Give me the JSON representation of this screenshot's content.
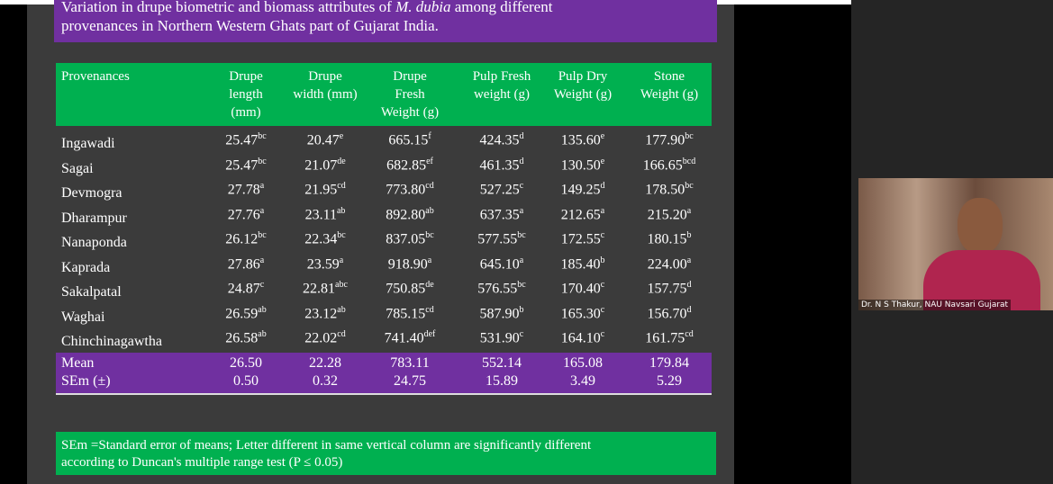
{
  "slide": {
    "title": [
      "Variation in drupe biometric and biomass attributes of ",
      "M. dubia",
      " among different",
      "provenances in Northern Western Ghats part of Gujarat India."
    ],
    "table": {
      "header": [
        [
          "Provenances"
        ],
        [
          "Drupe",
          "length",
          "(mm)"
        ],
        [
          "Drupe",
          "width (mm)"
        ],
        [
          "Drupe",
          "Fresh",
          "Weight (g)"
        ],
        [
          "Pulp Fresh",
          "weight (g)"
        ],
        [
          "Pulp Dry",
          "Weight (g)"
        ],
        [
          "Stone",
          "Weight (g)"
        ]
      ],
      "rows": [
        [
          "Ingawadi",
          [
            "25.47",
            "bc"
          ],
          [
            "20.47",
            "e"
          ],
          [
            "665.15",
            "f"
          ],
          [
            "424.35",
            "d"
          ],
          [
            "135.60",
            "e"
          ],
          [
            "177.90",
            "bc"
          ]
        ],
        [
          "Sagai",
          [
            "25.47",
            "bc"
          ],
          [
            "21.07",
            "de"
          ],
          [
            "682.85",
            "ef"
          ],
          [
            "461.35",
            "d"
          ],
          [
            "130.50",
            "e"
          ],
          [
            "166.65",
            "bcd"
          ]
        ],
        [
          "Devmogra",
          [
            "27.78",
            "a"
          ],
          [
            "21.95",
            "cd"
          ],
          [
            "773.80",
            "cd"
          ],
          [
            "527.25",
            "c"
          ],
          [
            "149.25",
            "d"
          ],
          [
            "178.50",
            "bc"
          ]
        ],
        [
          "Dharampur",
          [
            "27.76",
            "a"
          ],
          [
            "23.11",
            "ab"
          ],
          [
            "892.80",
            "ab"
          ],
          [
            "637.35",
            "a"
          ],
          [
            "212.65",
            "a"
          ],
          [
            "215.20",
            "a"
          ]
        ],
        [
          "Nanaponda",
          [
            "26.12",
            "bc"
          ],
          [
            "22.34",
            "bc"
          ],
          [
            "837.05",
            "bc"
          ],
          [
            "577.55",
            "bc"
          ],
          [
            "172.55",
            "c"
          ],
          [
            "180.15",
            "b"
          ]
        ],
        [
          "Kaprada",
          [
            "27.86",
            "a"
          ],
          [
            "23.59",
            "a"
          ],
          [
            "918.90",
            "a"
          ],
          [
            "645.10",
            "a"
          ],
          [
            "185.40",
            "b"
          ],
          [
            "224.00",
            "a"
          ]
        ],
        [
          "Sakalpatal",
          [
            "24.87",
            "c"
          ],
          [
            "22.81",
            "abc"
          ],
          [
            "750.85",
            "de"
          ],
          [
            "576.55",
            "bc"
          ],
          [
            "170.40",
            "c"
          ],
          [
            "157.75",
            "d"
          ]
        ],
        [
          "Waghai",
          [
            "26.59",
            "ab"
          ],
          [
            "23.12",
            "ab"
          ],
          [
            "785.15",
            "cd"
          ],
          [
            "587.90",
            "b"
          ],
          [
            "165.30",
            "c"
          ],
          [
            "156.70",
            "d"
          ]
        ],
        [
          "Chinchinagawtha",
          [
            "26.58",
            "ab"
          ],
          [
            "22.02",
            "cd"
          ],
          [
            "741.40",
            "def"
          ],
          [
            "531.90",
            "c"
          ],
          [
            "164.10",
            "c"
          ],
          [
            "161.75",
            "cd"
          ]
        ]
      ],
      "summary": [
        [
          "Mean",
          "26.50",
          "22.28",
          "783.11",
          "552.14",
          "165.08",
          "179.84"
        ],
        [
          "SEm (±)",
          "0.50",
          "0.32",
          "24.75",
          "15.89",
          "3.49",
          "5.29"
        ]
      ]
    },
    "footnote": [
      "SEm =Standard error of means; Letter different in same vertical column are significantly different",
      "according to Duncan's multiple range test (P ≤ 0.05)"
    ]
  },
  "participant": {
    "name": "Dr. N S Thakur, NAU Navsari Gujarat"
  }
}
